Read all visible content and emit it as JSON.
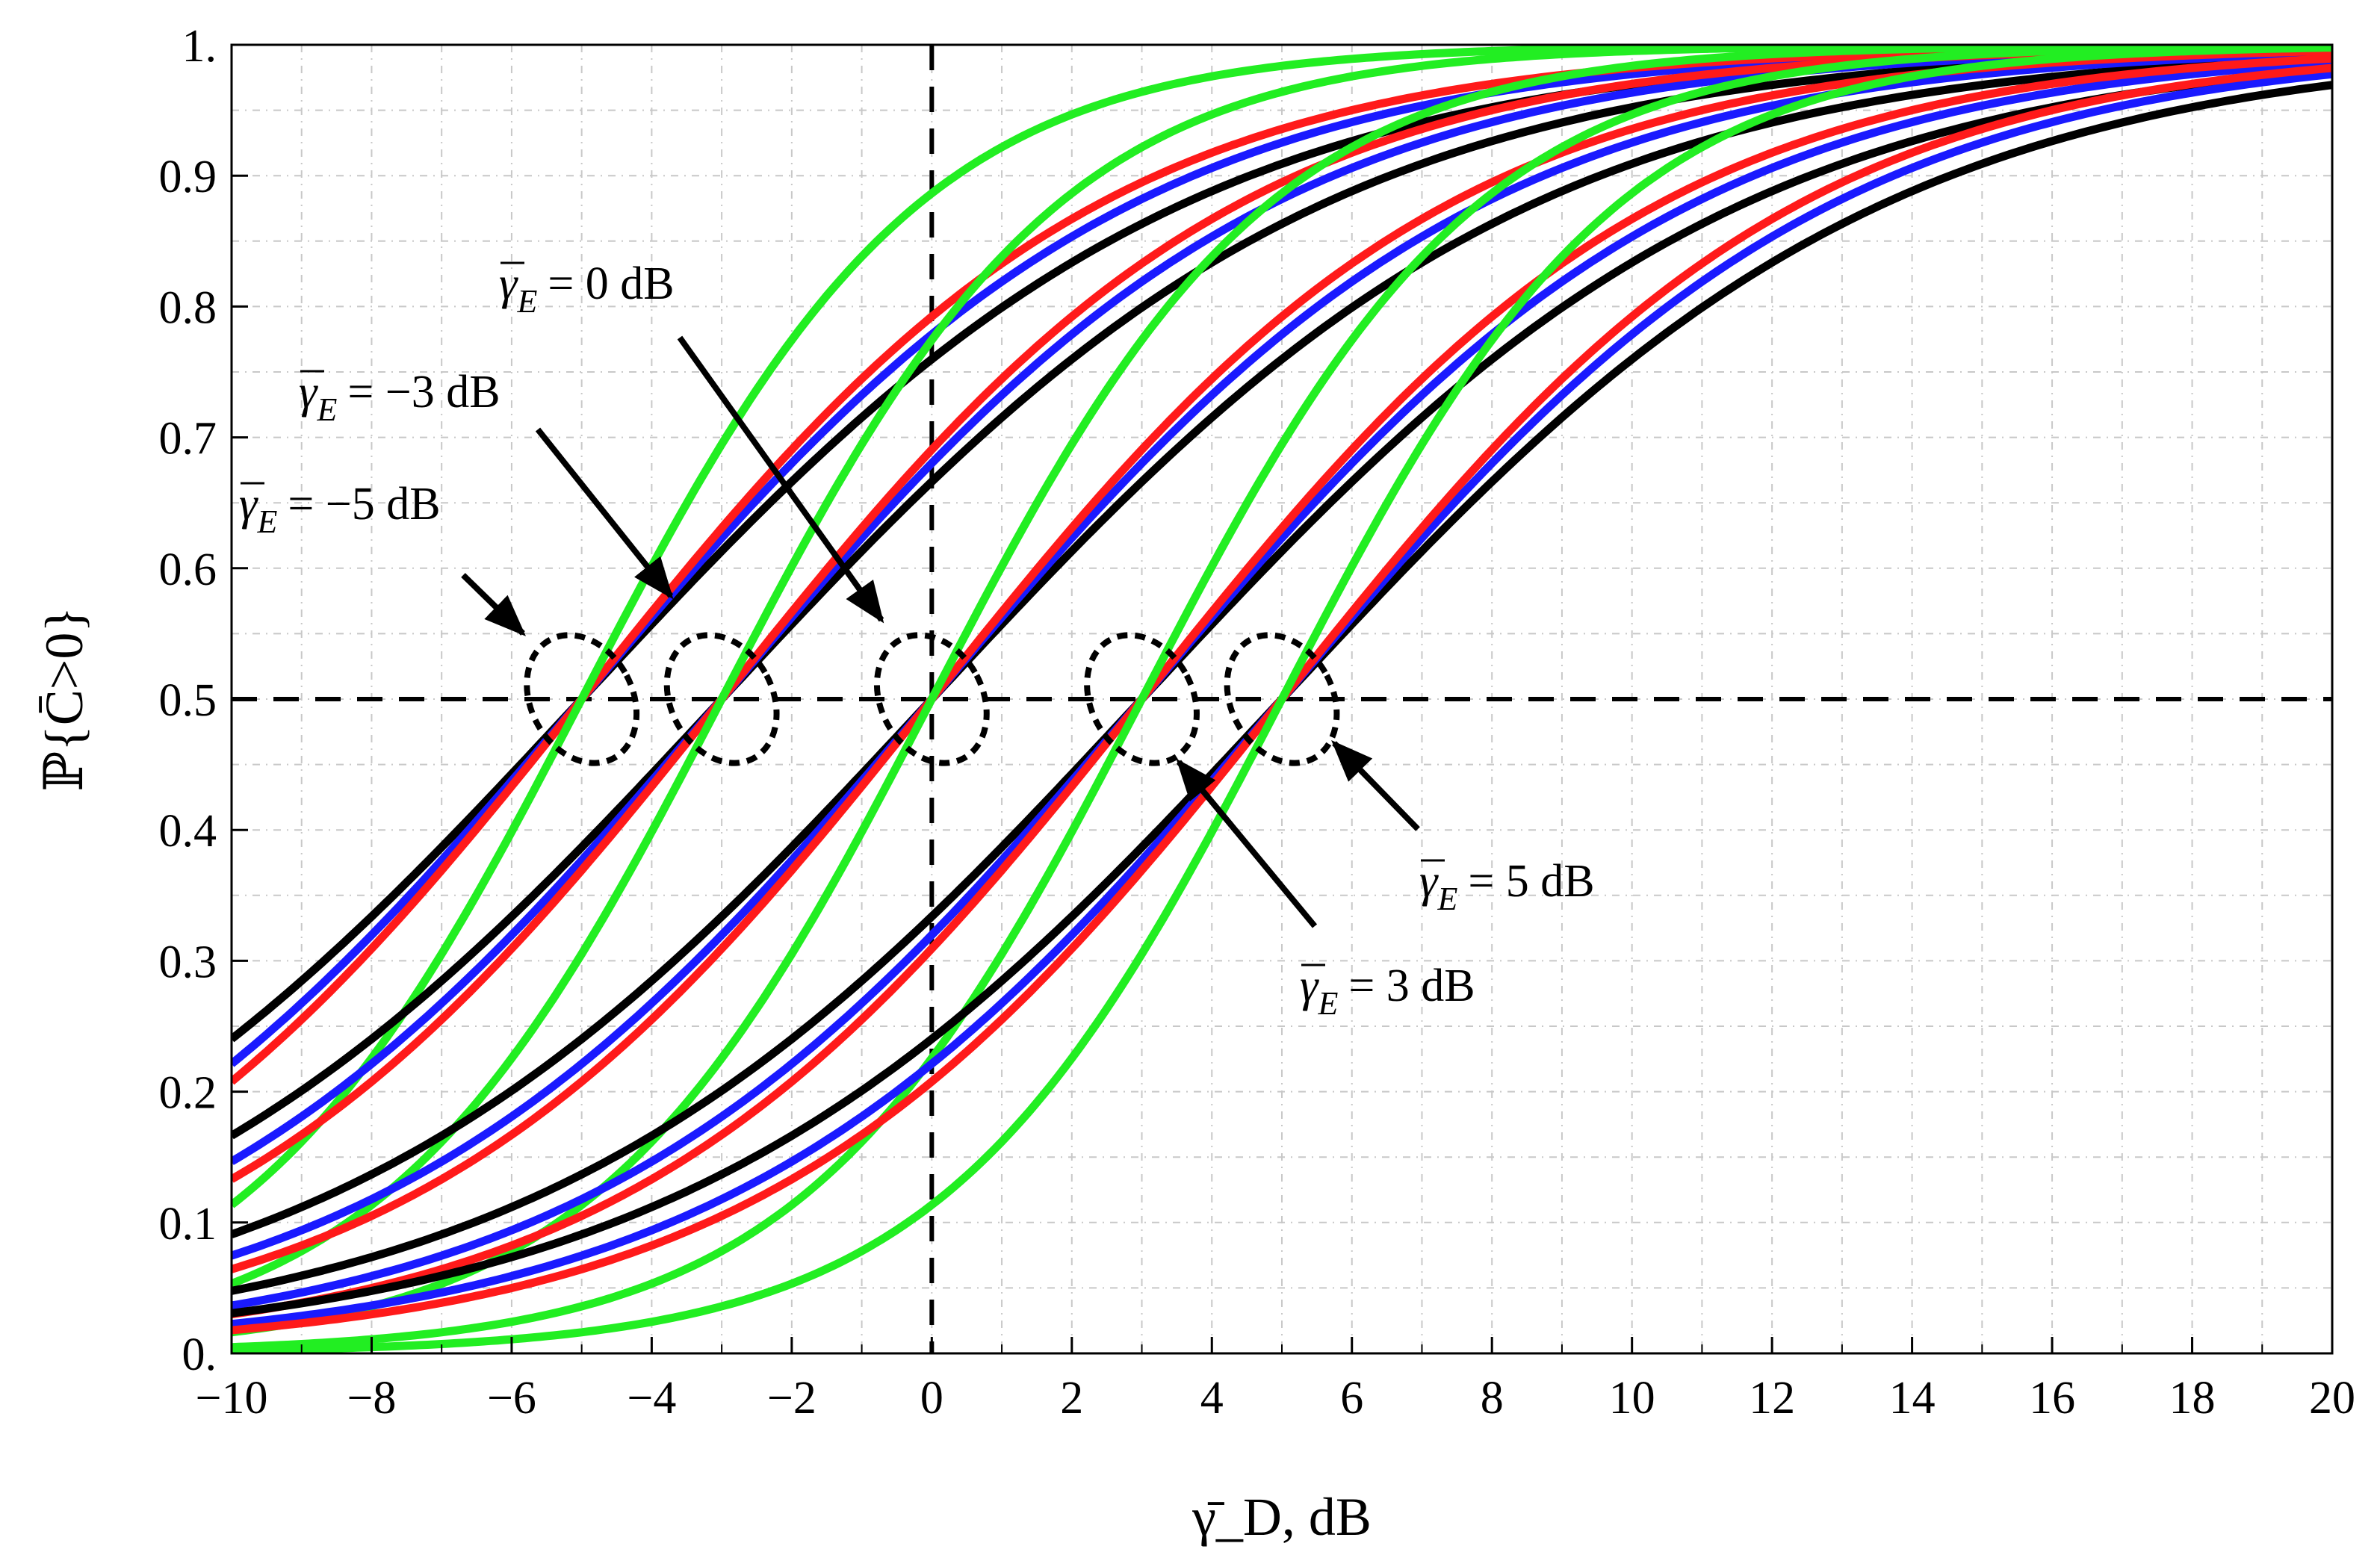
{
  "chart_data": {
    "type": "line",
    "title": "",
    "xlabel": "γ̄_D, dB",
    "ylabel": "ℙ{C̄>0}",
    "xlim": [
      -10,
      20
    ],
    "ylim": [
      0,
      1
    ],
    "x_ticks": [
      -10,
      -8,
      -6,
      -4,
      -2,
      0,
      2,
      4,
      6,
      8,
      10,
      12,
      14,
      16,
      18,
      20
    ],
    "x_tick_labels": [
      "−10",
      "−8",
      "−6",
      "−4",
      "−2",
      "0",
      "2",
      "4",
      "6",
      "8",
      "10",
      "12",
      "14",
      "16",
      "18",
      "20"
    ],
    "y_ticks": [
      0,
      0.1,
      0.2,
      0.3,
      0.4,
      0.5,
      0.6,
      0.7,
      0.8,
      0.9,
      1
    ],
    "y_tick_labels": [
      "0.",
      "0.1",
      "0.2",
      "0.3",
      "0.4",
      "0.5",
      "0.6",
      "0.7",
      "0.8",
      "0.9",
      "1."
    ],
    "grid": true,
    "reference_lines": [
      {
        "orientation": "horizontal",
        "value": 0.5,
        "style": "dashed"
      },
      {
        "orientation": "vertical",
        "value": 0,
        "style": "dashed"
      }
    ],
    "model": "P = 1 / (1 + 10^(-(x - gamma_E)/(10*k)))",
    "groups": [
      {
        "gamma_E": -5,
        "label": "= −5 dB",
        "circle_x": -5
      },
      {
        "gamma_E": -3,
        "label": "= −3 dB",
        "circle_x": -3
      },
      {
        "gamma_E": 0,
        "label": "= 0 dB",
        "circle_x": 0
      },
      {
        "gamma_E": 3,
        "label": "= 3 dB",
        "circle_x": 3
      },
      {
        "gamma_E": 5,
        "label": "= 5 dB",
        "circle_x": 5
      }
    ],
    "series_styles": [
      {
        "name": "black",
        "color": "#000000",
        "k": 1.0
      },
      {
        "name": "blue",
        "color": "#1a1aff",
        "k": 0.915
      },
      {
        "name": "red",
        "color": "#ff1a1a",
        "k": 0.86
      },
      {
        "name": "green",
        "color": "#22ee22",
        "k": 0.56
      }
    ],
    "annotation_symbol": "γ",
    "annotation_subscript": "E"
  },
  "colors": {
    "background": "#ffffff",
    "grid": "#c8c8c8",
    "axis": "#000000"
  }
}
